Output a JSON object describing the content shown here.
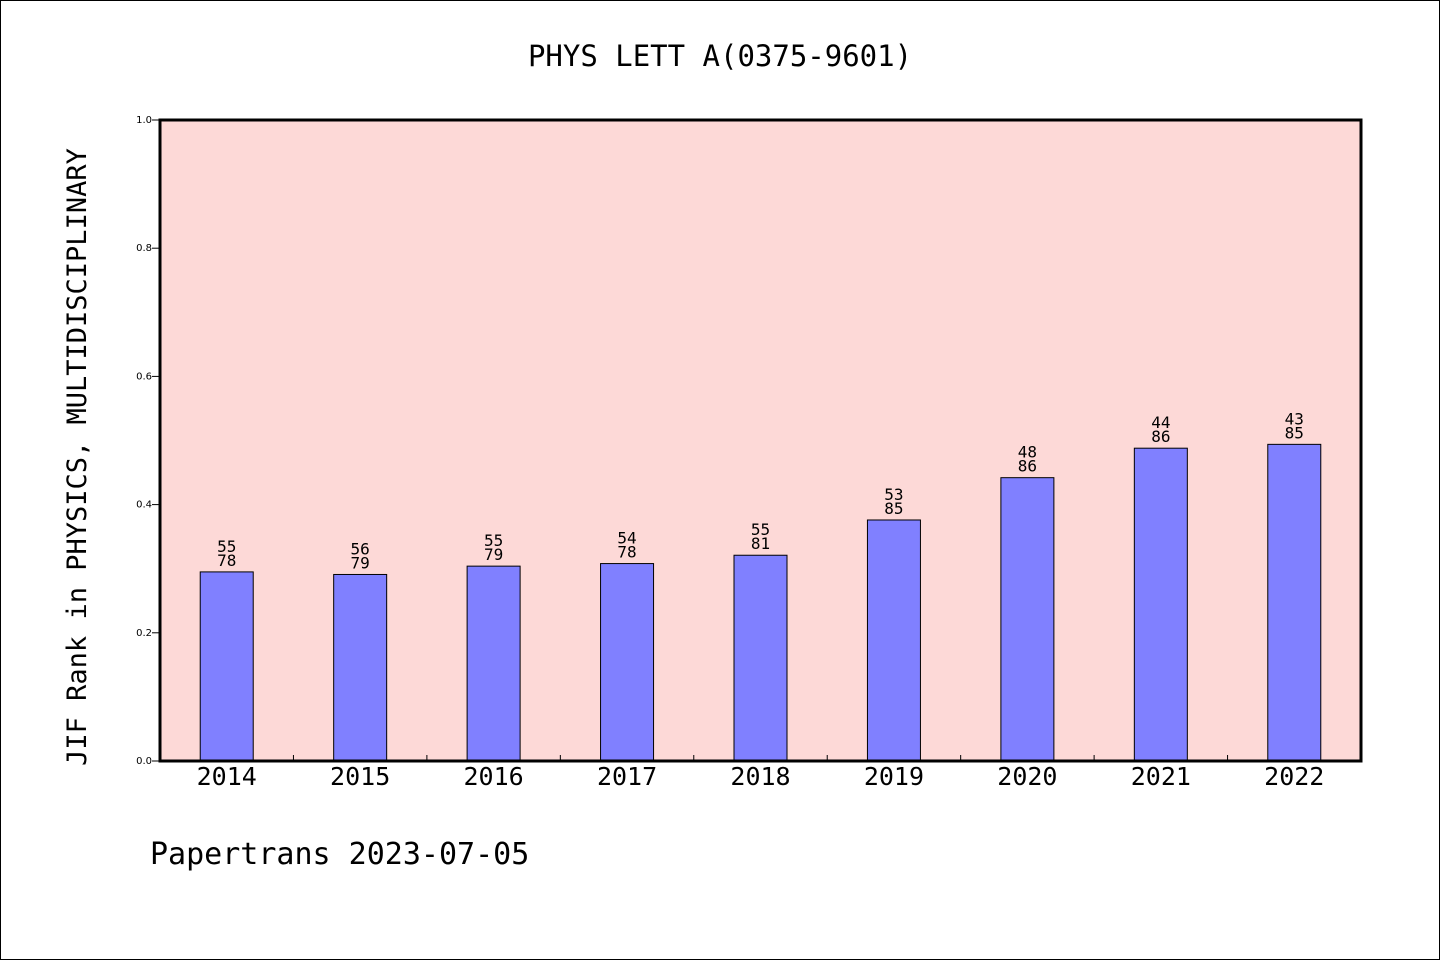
{
  "chart_data": {
    "type": "bar",
    "title": "PHYS LETT A(0375-9601)",
    "xlabel": "",
    "ylabel": "JIF Rank in PHYSICS, MULTIDISCIPLINARY",
    "ylim": [
      0,
      1.0
    ],
    "yticks": [
      "0.0",
      "0.2",
      "0.4",
      "0.6",
      "0.8",
      "1.0"
    ],
    "categories": [
      "2014",
      "2015",
      "2016",
      "2017",
      "2018",
      "2019",
      "2020",
      "2021",
      "2022"
    ],
    "values": [
      0.295,
      0.291,
      0.304,
      0.308,
      0.321,
      0.376,
      0.442,
      0.488,
      0.494
    ],
    "label_top": [
      "55",
      "56",
      "55",
      "54",
      "55",
      "53",
      "48",
      "44",
      "43"
    ],
    "label_bottom": [
      "78",
      "79",
      "79",
      "78",
      "81",
      "85",
      "86",
      "86",
      "85"
    ],
    "grid": false,
    "colors": {
      "plot_background": "#fdd9d7",
      "bar": "#8080ff"
    }
  },
  "footer": "Papertrans 2023-07-05"
}
